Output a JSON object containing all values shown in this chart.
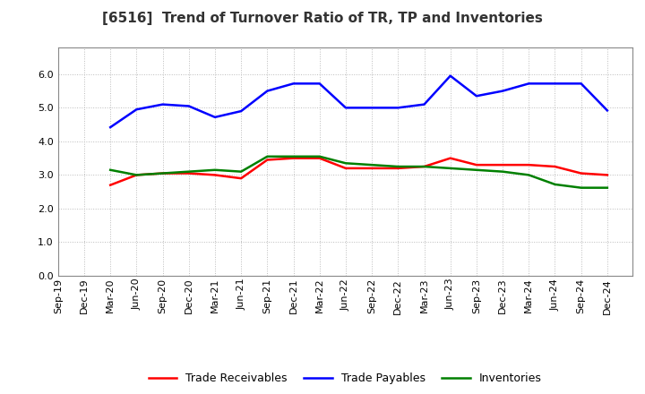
{
  "title": "[6516]  Trend of Turnover Ratio of TR, TP and Inventories",
  "x_labels": [
    "Sep-19",
    "Dec-19",
    "Mar-20",
    "Jun-20",
    "Sep-20",
    "Dec-20",
    "Mar-21",
    "Jun-21",
    "Sep-21",
    "Dec-21",
    "Mar-22",
    "Jun-22",
    "Sep-22",
    "Dec-22",
    "Mar-23",
    "Jun-23",
    "Sep-23",
    "Dec-23",
    "Mar-24",
    "Jun-24",
    "Sep-24",
    "Dec-24"
  ],
  "trade_receivables": [
    null,
    null,
    2.7,
    3.0,
    3.05,
    3.05,
    3.0,
    2.9,
    3.45,
    3.5,
    3.5,
    3.2,
    3.2,
    3.2,
    3.25,
    3.5,
    3.3,
    3.3,
    3.3,
    3.25,
    3.05,
    3.0
  ],
  "trade_payables": [
    null,
    null,
    4.42,
    4.95,
    5.1,
    5.05,
    4.72,
    4.9,
    5.5,
    5.72,
    5.72,
    5.0,
    5.0,
    5.0,
    5.1,
    5.95,
    5.35,
    5.5,
    5.72,
    5.72,
    5.72,
    4.92
  ],
  "inventories": [
    null,
    null,
    3.15,
    3.0,
    3.05,
    3.1,
    3.15,
    3.1,
    3.55,
    3.55,
    3.55,
    3.35,
    3.3,
    3.25,
    3.25,
    3.2,
    3.15,
    3.1,
    3.0,
    2.72,
    2.62,
    2.62
  ],
  "color_tr": "#ff0000",
  "color_tp": "#0000ff",
  "color_inv": "#008000",
  "ylim": [
    0.0,
    6.8
  ],
  "yticks": [
    0.0,
    1.0,
    2.0,
    3.0,
    4.0,
    5.0,
    6.0
  ],
  "line_width": 1.8,
  "background_color": "#ffffff",
  "plot_bg_color": "#ffffff",
  "grid_color": "#bbbbbb",
  "legend_labels": [
    "Trade Receivables",
    "Trade Payables",
    "Inventories"
  ],
  "title_fontsize": 11,
  "tick_fontsize": 8,
  "legend_fontsize": 9
}
